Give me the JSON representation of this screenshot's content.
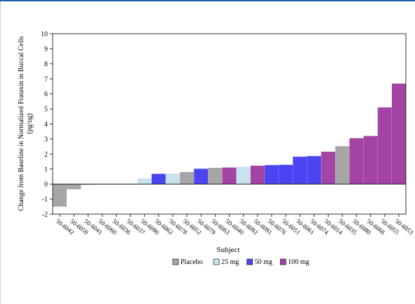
{
  "chart_data": {
    "type": "bar",
    "ylabel": "Change from Baseline in Normalized Frataxin in Buccal Cells (pg/ug)",
    "xlabel": "Subject",
    "ylim": [
      -2,
      10
    ],
    "yticks": [
      -2,
      -1,
      0,
      1,
      2,
      3,
      4,
      5,
      6,
      7,
      8,
      9,
      10
    ],
    "grid": false,
    "legend_position": "bottom",
    "groups": [
      {
        "name": "Placebo",
        "color": "#a6a6a6"
      },
      {
        "name": "25 mg",
        "color": "#c9e3ee"
      },
      {
        "name": "50 mg",
        "color": "#4a44f2"
      },
      {
        "name": "100 mg",
        "color": "#a343a3"
      }
    ],
    "categories": [
      "50-6042",
      "50-6050",
      "50-6041",
      "50-6060",
      "50-6036",
      "50-6037",
      "50-6090",
      "50-6062",
      "50-6078",
      "50-6052",
      "50-6079",
      "50-6063",
      "50-6040",
      "50-6092",
      "50-6091",
      "50-6076",
      "50-6051",
      "50-6061",
      "50-6074",
      "50-6014",
      "50-6035",
      "50-6080",
      "50-6066",
      "50-6055",
      "50-6053"
    ],
    "values": [
      -1.5,
      -0.35,
      -0.05,
      -0.03,
      0.0,
      0.0,
      0.38,
      0.68,
      0.7,
      0.8,
      1.02,
      1.08,
      1.1,
      1.15,
      1.22,
      1.26,
      1.28,
      1.82,
      1.86,
      2.15,
      2.52,
      3.05,
      3.2,
      5.1,
      6.68
    ],
    "bar_groups": [
      "Placebo",
      "Placebo",
      "Placebo",
      "Placebo",
      "Placebo",
      "Placebo",
      "25 mg",
      "50 mg",
      "25 mg",
      "Placebo",
      "50 mg",
      "Placebo",
      "100 mg",
      "25 mg",
      "100 mg",
      "50 mg",
      "50 mg",
      "50 mg",
      "50 mg",
      "100 mg",
      "Placebo",
      "100 mg",
      "100 mg",
      "100 mg",
      "100 mg"
    ]
  }
}
